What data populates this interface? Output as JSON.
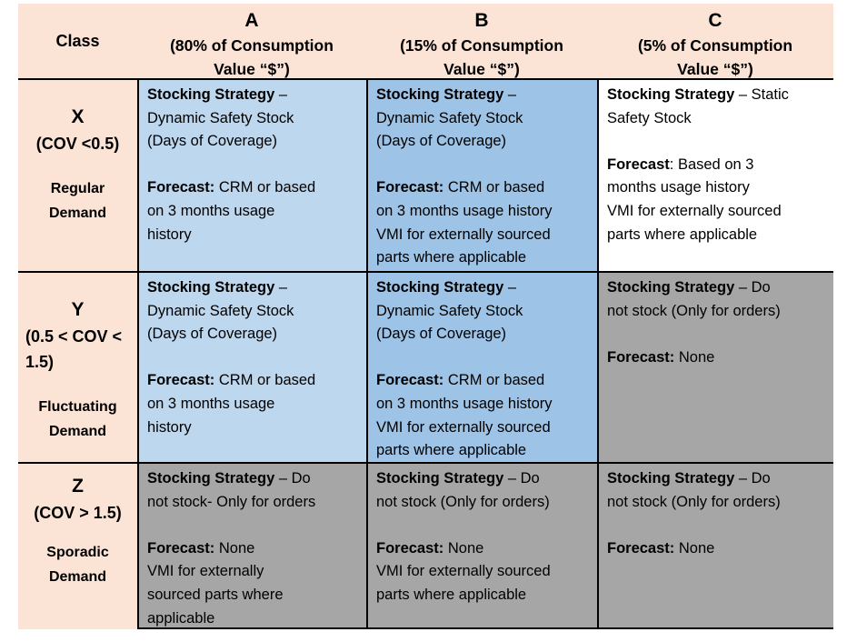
{
  "colors": {
    "header_bg": "#FBE3D5",
    "class_column_bg": "#FBE3D5",
    "dynamic_stock_a": "#BDD7EE",
    "dynamic_stock_b": "#9DC3E6",
    "static_stock": "#FFFFFF",
    "do_not_stock_gray": "#A6A6A6",
    "border": "#000000",
    "text": "#000000"
  },
  "header": {
    "class_label": "Class",
    "cols": [
      {
        "letter": "A",
        "sub": [
          "(80% of Consumption",
          "Value “$”)"
        ]
      },
      {
        "letter": "B",
        "sub": [
          "(15% of Consumption",
          "Value “$”)"
        ]
      },
      {
        "letter": "C",
        "sub": [
          "(5% of Consumption",
          "Value “$”)"
        ]
      }
    ]
  },
  "rows": [
    {
      "symbol": "X",
      "cov": [
        [
          "(COV <0.5)"
        ]
      ],
      "demand": [
        [
          "Regular"
        ],
        [
          "Demand"
        ]
      ]
    },
    {
      "symbol": "Y",
      "cov": [
        [
          "(0.5 < COV <"
        ],
        [
          "1.5)"
        ]
      ],
      "demand": [
        [
          "Fluctuating"
        ],
        [
          "Demand"
        ]
      ]
    },
    {
      "symbol": "Z",
      "cov": [
        [
          "(COV > 1.5)"
        ]
      ],
      "demand": [
        [
          "Sporadic"
        ],
        [
          "Demand"
        ]
      ]
    }
  ],
  "cells": {
    "x": {
      "a": {
        "bg": "#BDD7EE",
        "lines": [
          [
            {
              "b": "Stocking Strategy"
            },
            " –"
          ],
          [
            "Dynamic Safety Stock"
          ],
          [
            "(Days of Coverage)"
          ],
          [],
          [
            {
              "b": "Forecast:"
            },
            " CRM or based"
          ],
          [
            "on 3 months usage"
          ],
          [
            "history"
          ]
        ]
      },
      "b": {
        "bg": "#9DC3E6",
        "lines": [
          [
            {
              "b": "Stocking Strategy"
            },
            " –"
          ],
          [
            "Dynamic Safety Stock"
          ],
          [
            "(Days of Coverage)"
          ],
          [],
          [
            {
              "b": "Forecast:"
            },
            " CRM or based"
          ],
          [
            "on 3 months usage history"
          ],
          [
            "VMI for externally sourced"
          ],
          [
            "parts where applicable"
          ]
        ]
      },
      "c": {
        "bg": "#FFFFFF",
        "lines": [
          [
            {
              "b": "Stocking Strategy"
            },
            " – Static"
          ],
          [
            "Safety Stock"
          ],
          [],
          [
            {
              "b": "Forecast"
            },
            ": Based on 3"
          ],
          [
            "months usage history"
          ],
          [
            "VMI for externally sourced"
          ],
          [
            "parts where applicable"
          ]
        ]
      }
    },
    "y": {
      "a": {
        "bg": "#BDD7EE",
        "lines": [
          [
            {
              "b": "Stocking Strategy"
            },
            " –"
          ],
          [
            "Dynamic Safety Stock"
          ],
          [
            "(Days of Coverage)"
          ],
          [],
          [
            {
              "b": "Forecast:"
            },
            " CRM or based"
          ],
          [
            "on 3 months usage"
          ],
          [
            "history"
          ]
        ]
      },
      "b": {
        "bg": "#9DC3E6",
        "lines": [
          [
            {
              "b": "Stocking Strategy"
            },
            " –"
          ],
          [
            "Dynamic Safety Stock"
          ],
          [
            "(Days of Coverage)"
          ],
          [],
          [
            {
              "b": "Forecast:"
            },
            " CRM or based"
          ],
          [
            "on 3 months usage history"
          ],
          [
            "VMI for externally sourced"
          ],
          [
            "parts where applicable"
          ]
        ]
      },
      "c": {
        "bg": "#A6A6A6",
        "lines": [
          [
            {
              "b": "Stocking Strategy"
            },
            " – Do"
          ],
          [
            "not stock (Only for orders)"
          ],
          [],
          [
            {
              "b": "Forecast:"
            },
            " None"
          ]
        ]
      }
    },
    "z": {
      "a": {
        "bg": "#A6A6A6",
        "lines": [
          [
            {
              "b": "Stocking Strategy"
            },
            " – Do"
          ],
          [
            "not stock- Only for orders"
          ],
          [],
          [
            {
              "b": "Forecast:"
            },
            " None"
          ],
          [
            "VMI for externally"
          ],
          [
            "sourced parts where"
          ],
          [
            "applicable"
          ]
        ]
      },
      "b": {
        "bg": "#A6A6A6",
        "lines": [
          [
            {
              "b": "Stocking Strategy"
            },
            " – Do"
          ],
          [
            "not stock (Only for orders)"
          ],
          [],
          [
            {
              "b": "Forecast:"
            },
            " None"
          ],
          [
            "VMI for externally sourced"
          ],
          [
            "parts where applicable"
          ]
        ]
      },
      "c": {
        "bg": "#A6A6A6",
        "lines": [
          [
            {
              "b": "Stocking Strategy"
            },
            " – Do"
          ],
          [
            "not stock (Only for orders)"
          ],
          [],
          [
            {
              "b": "Forecast:"
            },
            " None"
          ]
        ]
      }
    }
  }
}
